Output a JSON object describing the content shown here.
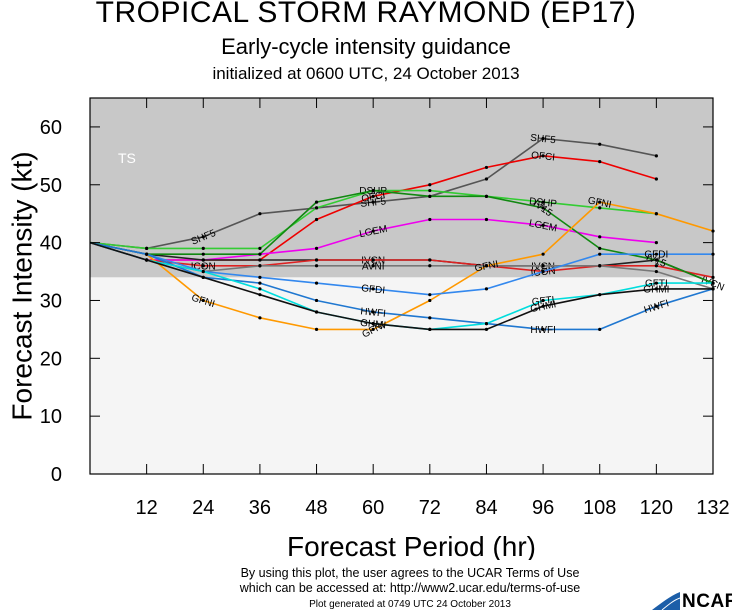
{
  "header": {
    "title": "TROPICAL STORM RAYMOND (EP17)",
    "subtitle": "Early-cycle intensity guidance",
    "initialized": "initialized at 0600 UTC, 24 October 2013"
  },
  "footer": {
    "terms_line1": "By using this plot, the user agrees to the UCAR Terms of Use",
    "terms_line2": "which can be accessed at: http://www2.ucar.edu/terms-of-use",
    "generated": "Plot generated at 0749 UTC  24 October 2013",
    "logo": "NCAR"
  },
  "colors": {
    "ts_band": "#c8c8c8",
    "below_band": "#f5f5f5"
  },
  "chart_data": {
    "type": "line",
    "xlabel": "Forecast Period (hr)",
    "ylabel": "Forecast Intensity (kt)",
    "xlim": [
      0,
      132
    ],
    "ylim": [
      0,
      65
    ],
    "xticks": [
      12,
      24,
      36,
      48,
      60,
      72,
      84,
      96,
      108,
      120,
      132
    ],
    "yticks": [
      0,
      10,
      20,
      30,
      40,
      50,
      60
    ],
    "grid": false,
    "legend": "none",
    "bands": [
      {
        "label": "TS",
        "from": 34,
        "to": 65
      }
    ],
    "series": [
      {
        "name": "SHF5",
        "color": "#555555",
        "x": [
          0,
          12,
          24,
          36,
          48,
          60,
          72,
          84,
          96,
          108,
          120
        ],
        "y": [
          40,
          39,
          41,
          45,
          46,
          47,
          48,
          51,
          58,
          57,
          55
        ],
        "labels": [
          {
            "text": "SHF5",
            "x": 24
          },
          {
            "text": "SHF5",
            "x": 60
          },
          {
            "text": "SHF5",
            "x": 96
          }
        ]
      },
      {
        "name": "OFCI",
        "color": "#ee0000",
        "x": [
          0,
          12,
          24,
          36,
          48,
          60,
          72,
          84,
          96,
          108,
          120
        ],
        "y": [
          40,
          37,
          37,
          37,
          44,
          48,
          50,
          53,
          55,
          54,
          51
        ],
        "labels": [
          {
            "text": "OFCI",
            "x": 60
          },
          {
            "text": "OFCI",
            "x": 96
          }
        ]
      },
      {
        "name": "DSHP",
        "color": "#33cc33",
        "x": [
          0,
          12,
          24,
          36,
          48,
          60,
          72,
          84,
          96,
          108,
          120
        ],
        "y": [
          40,
          39,
          39,
          39,
          46,
          49,
          49,
          48,
          47,
          46,
          45
        ],
        "labels": [
          {
            "text": "DSHP",
            "x": 60
          },
          {
            "text": "DSHP",
            "x": 96
          }
        ]
      },
      {
        "name": "LGEM",
        "color": "#ee00ee",
        "x": [
          0,
          12,
          24,
          36,
          48,
          60,
          72,
          84,
          96,
          108,
          120
        ],
        "y": [
          40,
          37,
          37,
          38,
          39,
          42,
          44,
          44,
          43,
          41,
          40
        ],
        "labels": [
          {
            "text": "LGEM",
            "x": 60
          },
          {
            "text": "LGEM",
            "x": 96
          }
        ]
      },
      {
        "name": "IVCN",
        "color": "#222222",
        "x": [
          0,
          12,
          24,
          36,
          48,
          60,
          72,
          84,
          96,
          108,
          120,
          132
        ],
        "y": [
          40,
          38,
          37,
          37,
          37,
          37,
          37,
          36,
          36,
          36,
          37,
          33
        ],
        "labels": [
          {
            "text": "IVCN",
            "x": 60
          },
          {
            "text": "IVCN",
            "x": 96
          },
          {
            "text": "IVCN",
            "x": 132
          }
        ]
      },
      {
        "name": "ICON",
        "color": "#dd2222",
        "x": [
          0,
          12,
          24,
          36,
          48,
          60,
          72,
          84,
          96,
          108,
          120,
          132
        ],
        "y": [
          40,
          37,
          36,
          36,
          37,
          37,
          37,
          36,
          35,
          36,
          36,
          34
        ],
        "labels": [
          {
            "text": "ICON",
            "x": 24
          },
          {
            "text": "ICON",
            "x": 96
          }
        ]
      },
      {
        "name": "AVNI",
        "color": "#777777",
        "x": [
          0,
          12,
          24,
          36,
          48,
          60,
          72,
          84,
          96,
          108,
          120,
          132
        ],
        "y": [
          40,
          37,
          35,
          36,
          36,
          36,
          36,
          36,
          36,
          36,
          35,
          32
        ],
        "labels": [
          {
            "text": "AVNI",
            "x": 60
          }
        ]
      },
      {
        "name": "IV15",
        "color": "#118811",
        "x": [
          0,
          12,
          24,
          36,
          48,
          60,
          72,
          84,
          96,
          108,
          120,
          132
        ],
        "y": [
          40,
          38,
          38,
          38,
          47,
          49,
          48,
          48,
          46,
          39,
          37,
          33
        ],
        "labels": [
          {
            "text": "IV15",
            "x": 96
          },
          {
            "text": "IV15",
            "x": 120
          }
        ]
      },
      {
        "name": "GFNI",
        "color": "#ff9900",
        "x": [
          0,
          12,
          24,
          36,
          48,
          60,
          72,
          84,
          96,
          108,
          120,
          132
        ],
        "y": [
          40,
          38,
          30,
          27,
          25,
          25,
          30,
          36,
          38,
          47,
          45,
          42
        ],
        "labels": [
          {
            "text": "GFNI",
            "x": 24
          },
          {
            "text": "GFNI",
            "x": 60
          },
          {
            "text": "GFNI",
            "x": 84
          },
          {
            "text": "GFNI",
            "x": 108
          }
        ]
      },
      {
        "name": "GFDI",
        "color": "#3388ee",
        "x": [
          0,
          12,
          24,
          36,
          48,
          60,
          72,
          84,
          96,
          108,
          120,
          132
        ],
        "y": [
          40,
          38,
          35,
          34,
          33,
          32,
          31,
          32,
          35,
          38,
          38,
          38
        ],
        "labels": [
          {
            "text": "GFDI",
            "x": 60
          },
          {
            "text": "GFDI",
            "x": 120
          }
        ]
      },
      {
        "name": "HWFI",
        "color": "#1f77d0",
        "x": [
          0,
          12,
          24,
          36,
          48,
          60,
          72,
          84,
          96,
          108,
          120,
          132
        ],
        "y": [
          40,
          38,
          34,
          33,
          30,
          28,
          27,
          26,
          25,
          25,
          29,
          32
        ],
        "labels": [
          {
            "text": "HWFI",
            "x": 60
          },
          {
            "text": "HWFI",
            "x": 96
          },
          {
            "text": "HWFI",
            "x": 120
          }
        ]
      },
      {
        "name": "GFTI",
        "color": "#00dddd",
        "x": [
          0,
          12,
          24,
          36,
          48,
          60,
          72,
          84,
          96,
          108,
          120,
          132
        ],
        "y": [
          40,
          37,
          35,
          32,
          28,
          26,
          25,
          26,
          30,
          31,
          33,
          33
        ],
        "labels": [
          {
            "text": "GFTI",
            "x": 96
          },
          {
            "text": "GFTI",
            "x": 120
          }
        ]
      },
      {
        "name": "GHMI",
        "color": "#111111",
        "x": [
          0,
          12,
          24,
          36,
          48,
          60,
          72,
          84,
          96,
          108,
          120,
          132
        ],
        "y": [
          40,
          37,
          34,
          31,
          28,
          26,
          25,
          25,
          29,
          31,
          32,
          32
        ],
        "labels": [
          {
            "text": "GHMI",
            "x": 60
          },
          {
            "text": "GHMI",
            "x": 96
          },
          {
            "text": "GHMI",
            "x": 120
          }
        ]
      }
    ]
  }
}
